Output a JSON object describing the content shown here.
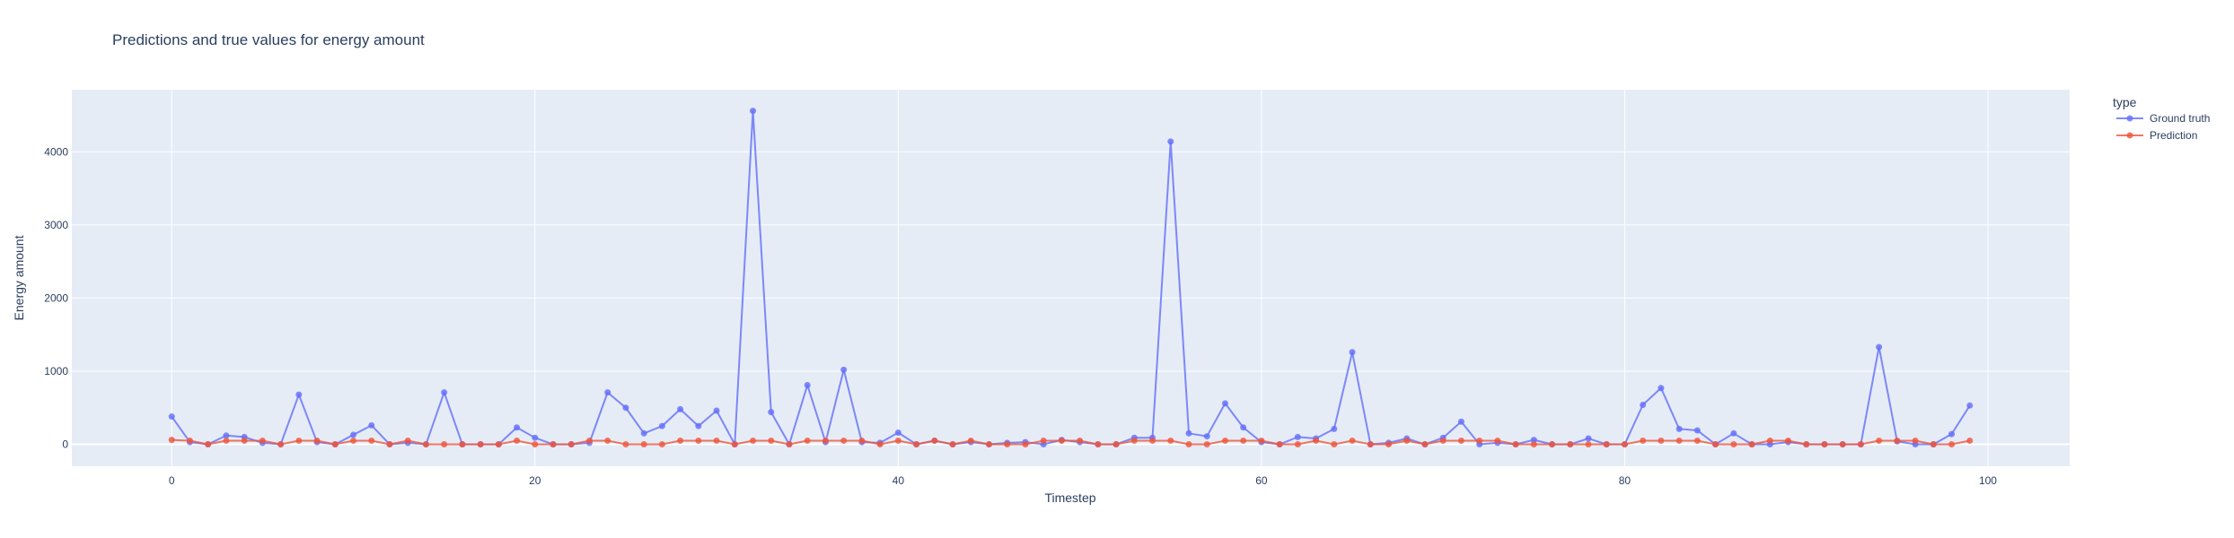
{
  "chart_data": {
    "type": "line",
    "title": "Predictions and true values for energy amount",
    "xlabel": "Timestep",
    "ylabel": "Energy amount",
    "xlim": [
      -5.5,
      104.5
    ],
    "ylim": [
      -300,
      4850
    ],
    "xticks": [
      0,
      20,
      40,
      60,
      80,
      100
    ],
    "yticks": [
      0,
      1000,
      2000,
      3000,
      4000
    ],
    "grid": true,
    "legend_title": "type",
    "legend_placement": "top-right",
    "series": [
      {
        "name": "Ground truth",
        "color": "#636efa",
        "x": [
          0,
          1,
          2,
          3,
          4,
          5,
          6,
          7,
          8,
          9,
          10,
          11,
          12,
          13,
          14,
          15,
          16,
          17,
          18,
          19,
          20,
          21,
          22,
          23,
          24,
          25,
          26,
          27,
          28,
          29,
          30,
          31,
          32,
          33,
          34,
          35,
          36,
          37,
          38,
          39,
          40,
          41,
          42,
          43,
          44,
          45,
          46,
          47,
          48,
          49,
          50,
          51,
          52,
          53,
          54,
          55,
          56,
          57,
          58,
          59,
          60,
          61,
          62,
          63,
          64,
          65,
          66,
          67,
          68,
          69,
          70,
          71,
          72,
          73,
          74,
          75,
          76,
          77,
          78,
          79,
          80,
          81,
          82,
          83,
          84,
          85,
          86,
          87,
          88,
          89,
          90,
          91,
          92,
          93,
          94,
          95,
          96,
          97,
          98,
          99
        ],
        "y": [
          380,
          30,
          0,
          120,
          100,
          20,
          0,
          680,
          30,
          0,
          130,
          260,
          0,
          20,
          0,
          710,
          0,
          0,
          0,
          230,
          90,
          0,
          0,
          20,
          710,
          500,
          150,
          250,
          480,
          250,
          460,
          0,
          4560,
          440,
          0,
          810,
          30,
          1020,
          30,
          20,
          160,
          0,
          50,
          0,
          30,
          0,
          20,
          30,
          0,
          60,
          30,
          0,
          0,
          90,
          90,
          4140,
          150,
          110,
          560,
          230,
          30,
          0,
          100,
          80,
          210,
          1260,
          0,
          20,
          80,
          0,
          90,
          310,
          0,
          20,
          0,
          60,
          0,
          0,
          80,
          0,
          0,
          540,
          770,
          210,
          190,
          0,
          150,
          0,
          0,
          30,
          0,
          0,
          0,
          0,
          1330,
          40,
          0,
          0,
          140,
          530
        ]
      },
      {
        "name": "Prediction",
        "color": "#ef553b",
        "x": [
          0,
          1,
          2,
          3,
          4,
          5,
          6,
          7,
          8,
          9,
          10,
          11,
          12,
          13,
          14,
          15,
          16,
          17,
          18,
          19,
          20,
          21,
          22,
          23,
          24,
          25,
          26,
          27,
          28,
          29,
          30,
          31,
          32,
          33,
          34,
          35,
          36,
          37,
          38,
          39,
          40,
          41,
          42,
          43,
          44,
          45,
          46,
          47,
          48,
          49,
          50,
          51,
          52,
          53,
          54,
          55,
          56,
          57,
          58,
          59,
          60,
          61,
          62,
          63,
          64,
          65,
          66,
          67,
          68,
          69,
          70,
          71,
          72,
          73,
          74,
          75,
          76,
          77,
          78,
          79,
          80,
          81,
          82,
          83,
          84,
          85,
          86,
          87,
          88,
          89,
          90,
          91,
          92,
          93,
          94,
          95,
          96,
          97,
          98,
          99
        ],
        "y": [
          60,
          50,
          0,
          50,
          50,
          50,
          0,
          50,
          50,
          0,
          50,
          50,
          0,
          50,
          0,
          0,
          0,
          0,
          0,
          50,
          0,
          0,
          0,
          50,
          50,
          0,
          0,
          0,
          50,
          50,
          50,
          0,
          50,
          50,
          0,
          50,
          50,
          50,
          50,
          0,
          50,
          0,
          50,
          0,
          50,
          0,
          0,
          0,
          50,
          50,
          50,
          0,
          0,
          50,
          50,
          50,
          0,
          0,
          50,
          50,
          50,
          0,
          0,
          50,
          0,
          50,
          0,
          0,
          50,
          0,
          50,
          50,
          50,
          50,
          0,
          0,
          0,
          0,
          0,
          0,
          0,
          50,
          50,
          50,
          50,
          0,
          0,
          0,
          50,
          50,
          0,
          0,
          0,
          0,
          50,
          50,
          50,
          0,
          0,
          50
        ]
      }
    ]
  }
}
